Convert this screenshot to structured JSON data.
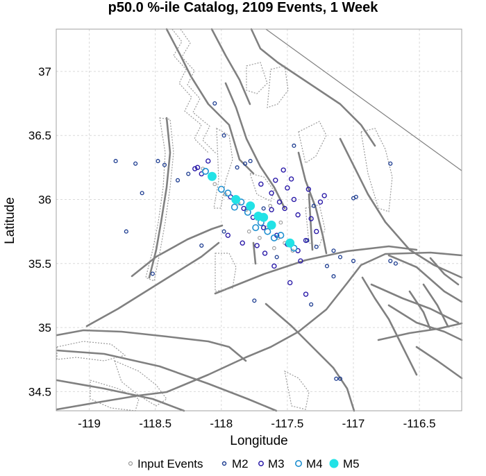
{
  "title": "p50.0 %-ile Catalog, 2109 Events, 1 Week",
  "chart_data": {
    "type": "scatter",
    "title": "p50.0 %-ile Catalog, 2109 Events, 1 Week",
    "xlabel": "Longitude",
    "ylabel": "Latitude",
    "xlim": [
      -119.25,
      -116.18
    ],
    "ylim": [
      34.35,
      37.33
    ],
    "xticks": [
      -119,
      -118.5,
      -118,
      -117.5,
      -117,
      -116.5
    ],
    "yticks": [
      34.5,
      35,
      35.5,
      36,
      36.5,
      37
    ],
    "grid": true,
    "legend_placement": "bottom",
    "colors": {
      "input": "#9a9a9a",
      "m2": "#1a3a8f",
      "m3": "#2a1aa8",
      "m4": "#1e8fd0",
      "m5": "#22e2e6",
      "fault": "#808080"
    },
    "legend": [
      "Input Events",
      "M2",
      "M3",
      "M4",
      "M5"
    ],
    "series": [
      {
        "name": "M5",
        "points": [
          [
            -118.07,
            36.18
          ],
          [
            -117.89,
            36.0
          ],
          [
            -117.78,
            35.95
          ],
          [
            -117.72,
            35.87
          ],
          [
            -117.68,
            35.86
          ],
          [
            -117.62,
            35.8
          ],
          [
            -117.48,
            35.66
          ]
        ]
      },
      {
        "name": "M4",
        "points": [
          [
            -118.12,
            36.22
          ],
          [
            -118.0,
            36.08
          ],
          [
            -117.95,
            36.05
          ],
          [
            -117.85,
            35.98
          ],
          [
            -117.8,
            35.9
          ],
          [
            -117.7,
            35.82
          ],
          [
            -117.65,
            35.75
          ],
          [
            -117.55,
            35.72
          ],
          [
            -117.45,
            35.62
          ],
          [
            -117.9,
            35.94
          ],
          [
            -117.74,
            35.78
          ],
          [
            -117.6,
            35.7
          ]
        ]
      },
      {
        "name": "M3",
        "points": [
          [
            -118.18,
            36.25
          ],
          [
            -118.15,
            36.2
          ],
          [
            -117.93,
            36.02
          ],
          [
            -117.83,
            35.93
          ],
          [
            -117.76,
            35.86
          ],
          [
            -117.68,
            35.78
          ],
          [
            -117.58,
            35.72
          ],
          [
            -117.5,
            35.65
          ],
          [
            -117.42,
            35.6
          ],
          [
            -117.62,
            36.05
          ],
          [
            -117.56,
            35.98
          ],
          [
            -117.62,
            35.92
          ],
          [
            -117.7,
            36.12
          ],
          [
            -117.59,
            36.15
          ],
          [
            -117.53,
            36.23
          ],
          [
            -117.47,
            36.16
          ],
          [
            -117.22,
            36.03
          ],
          [
            -117.25,
            35.98
          ],
          [
            -117.42,
            35.88
          ],
          [
            -117.32,
            35.85
          ],
          [
            -117.28,
            35.75
          ],
          [
            -117.36,
            35.68
          ],
          [
            -117.4,
            35.52
          ],
          [
            -117.6,
            35.48
          ],
          [
            -117.67,
            35.58
          ],
          [
            -117.73,
            35.64
          ],
          [
            -117.84,
            35.66
          ],
          [
            -117.95,
            35.72
          ],
          [
            -118.1,
            36.3
          ],
          [
            -118.2,
            36.24
          ],
          [
            -117.48,
            35.35
          ],
          [
            -117.36,
            35.26
          ],
          [
            -117.5,
            36.09
          ],
          [
            -117.34,
            36.08
          ],
          [
            -117.45,
            36.0
          ],
          [
            -117.52,
            35.93
          ]
        ]
      },
      {
        "name": "M2",
        "points": [
          [
            -118.8,
            36.3
          ],
          [
            -118.65,
            36.28
          ],
          [
            -118.48,
            36.3
          ],
          [
            -118.43,
            36.27
          ],
          [
            -118.6,
            36.05
          ],
          [
            -118.72,
            35.75
          ],
          [
            -118.52,
            35.42
          ],
          [
            -118.05,
            36.75
          ],
          [
            -117.98,
            36.5
          ],
          [
            -117.45,
            36.42
          ],
          [
            -117.0,
            36.01
          ],
          [
            -116.98,
            36.02
          ],
          [
            -116.72,
            36.28
          ],
          [
            -116.72,
            35.52
          ],
          [
            -116.68,
            35.5
          ],
          [
            -117.0,
            35.52
          ],
          [
            -117.1,
            35.55
          ],
          [
            -117.15,
            35.6
          ],
          [
            -117.2,
            35.48
          ],
          [
            -117.15,
            35.4
          ],
          [
            -117.32,
            35.18
          ],
          [
            -117.75,
            35.21
          ],
          [
            -117.13,
            34.6
          ],
          [
            -117.1,
            34.6
          ],
          [
            -118.15,
            35.64
          ],
          [
            -117.98,
            35.75
          ],
          [
            -118.33,
            36.15
          ],
          [
            -118.25,
            36.2
          ],
          [
            -117.88,
            36.25
          ],
          [
            -117.82,
            36.28
          ],
          [
            -117.78,
            36.3
          ],
          [
            -117.3,
            35.95
          ],
          [
            -117.35,
            35.68
          ],
          [
            -117.68,
            35.93
          ],
          [
            -117.58,
            35.55
          ],
          [
            -117.28,
            35.63
          ]
        ]
      },
      {
        "name": "Input Events",
        "points": [
          [
            -118.14,
            36.24
          ],
          [
            -118.05,
            36.12
          ],
          [
            -117.97,
            36.04
          ],
          [
            -117.87,
            35.97
          ],
          [
            -117.81,
            35.92
          ],
          [
            -117.73,
            35.85
          ],
          [
            -117.66,
            35.78
          ],
          [
            -117.57,
            35.7
          ],
          [
            -117.52,
            35.66
          ],
          [
            -117.46,
            35.6
          ],
          [
            -117.55,
            35.82
          ],
          [
            -117.63,
            35.95
          ],
          [
            -117.79,
            35.75
          ],
          [
            -117.71,
            35.7
          ],
          [
            -117.6,
            35.62
          ]
        ]
      }
    ]
  }
}
